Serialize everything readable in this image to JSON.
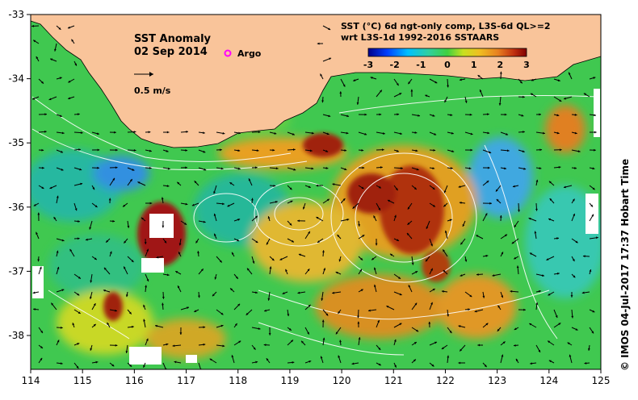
{
  "map": {
    "title": "SST Anomaly",
    "date": "02 Sep 2014",
    "argo_label": "Argo",
    "velocity_scale": "0.5 m/s",
    "colorbar_title_line1": "SST (°C) 6d ngt-only comp, L3S-6d QL>=2",
    "colorbar_title_line2": "wrt L3S-1d 1992-2016 SSTAARS",
    "colorbar_ticks": [
      "-3",
      "-2",
      "-1",
      "0",
      "1",
      "2",
      "3"
    ],
    "credit": "© IMOS 04-Jul-2017 17:37 Hobart Time",
    "x_ticks": [
      "114",
      "115",
      "116",
      "117",
      "118",
      "119",
      "120",
      "121",
      "122",
      "123",
      "124",
      "125"
    ],
    "y_ticks": [
      "-33",
      "-34",
      "-35",
      "-36",
      "-37",
      "-38"
    ],
    "colors": {
      "land": "#f9c49a",
      "anomaly_cold": "#0000c0",
      "anomaly_neutral": "#3ccc3c",
      "anomaly_warm": "#e89c20",
      "anomaly_hot": "#a01010",
      "argo_marker": "#ff00ff"
    }
  }
}
